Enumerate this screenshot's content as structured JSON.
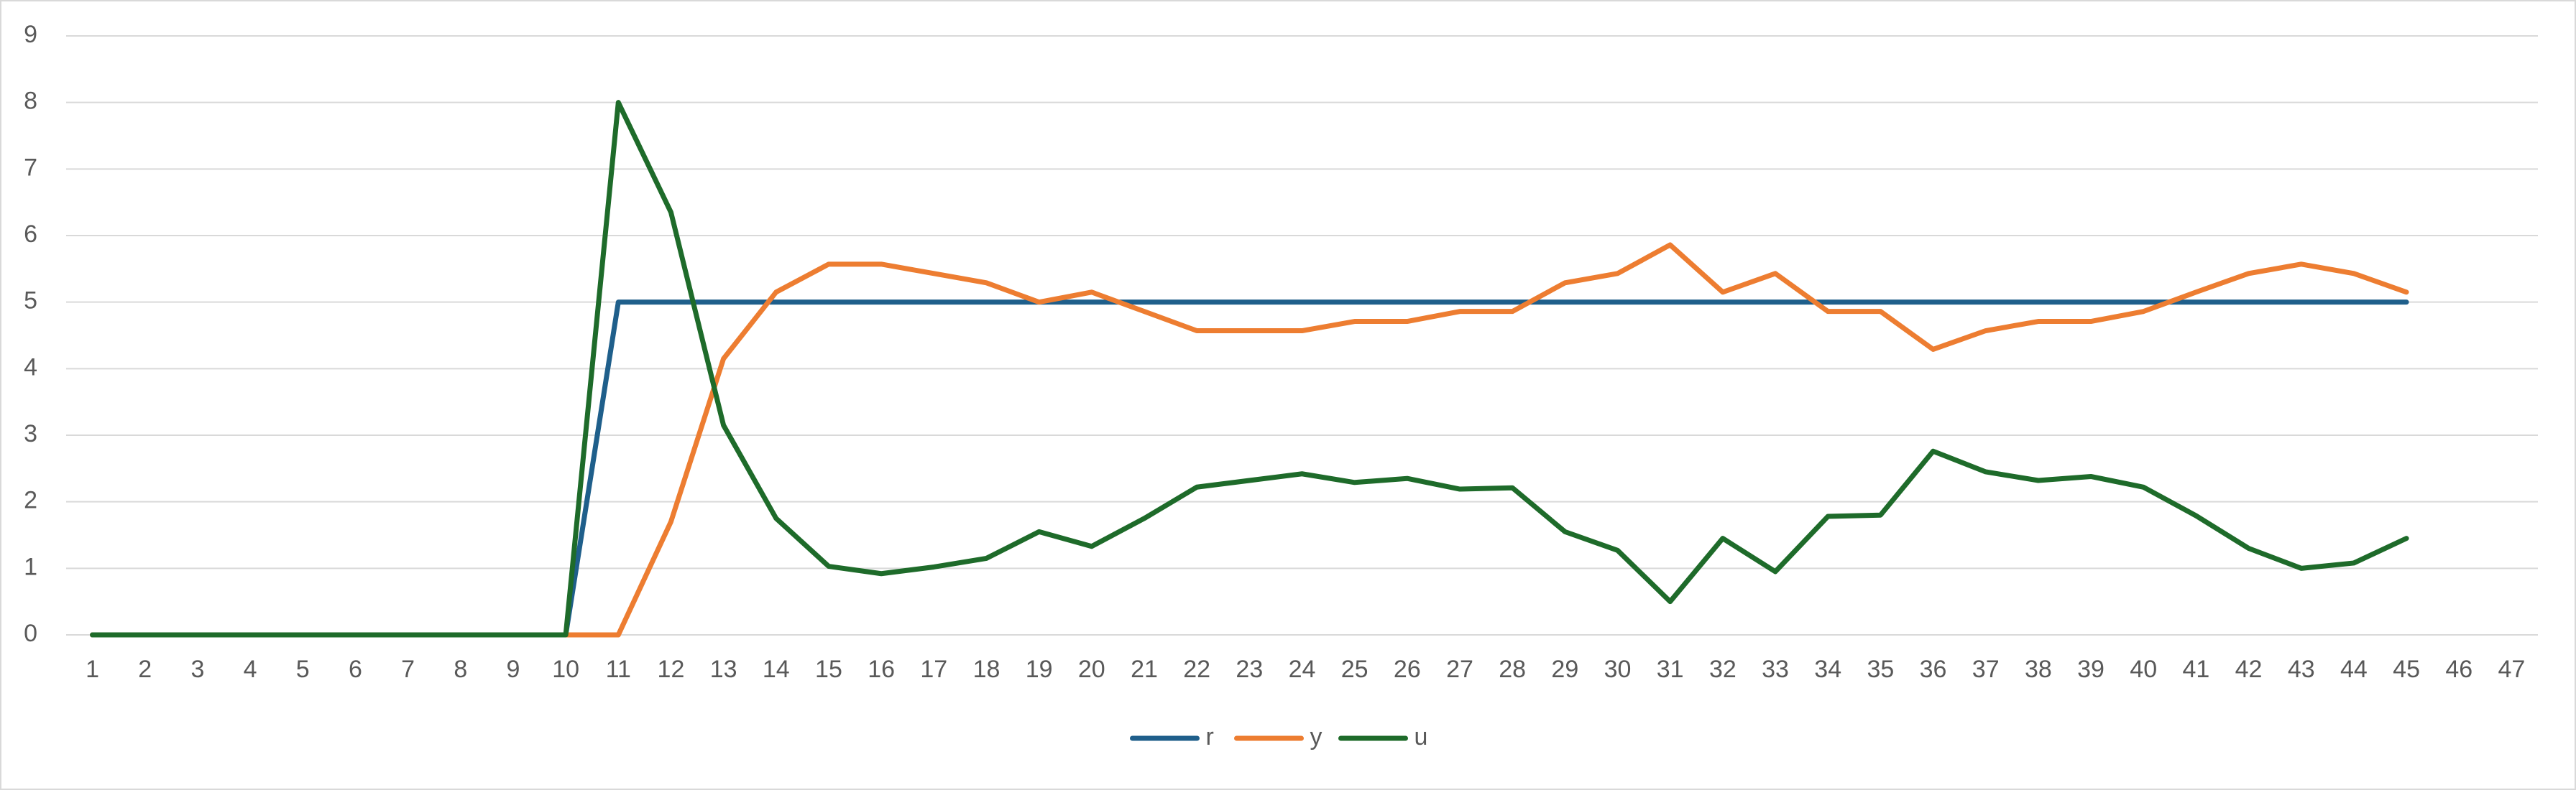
{
  "chart_data": {
    "type": "line",
    "categories": [
      "1",
      "2",
      "3",
      "4",
      "5",
      "6",
      "7",
      "8",
      "9",
      "10",
      "11",
      "12",
      "13",
      "14",
      "15",
      "16",
      "17",
      "18",
      "19",
      "20",
      "21",
      "22",
      "23",
      "24",
      "25",
      "26",
      "27",
      "28",
      "29",
      "30",
      "31",
      "32",
      "33",
      "34",
      "35",
      "36",
      "37",
      "38",
      "39",
      "40",
      "41",
      "42",
      "43",
      "44",
      "45",
      "46",
      "47"
    ],
    "series": [
      {
        "name": "r",
        "color": "#1f5f8b",
        "values": [
          0,
          0,
          0,
          0,
          0,
          0,
          0,
          0,
          0,
          0,
          5,
          5,
          5,
          5,
          5,
          5,
          5,
          5,
          5,
          5,
          5,
          5,
          5,
          5,
          5,
          5,
          5,
          5,
          5,
          5,
          5,
          5,
          5,
          5,
          5,
          5,
          5,
          5,
          5,
          5,
          5,
          5,
          5,
          5,
          5,
          null,
          null
        ]
      },
      {
        "name": "y",
        "color": "#ed7d31",
        "values": [
          0,
          0,
          0,
          0,
          0,
          0,
          0,
          0,
          0,
          0,
          0,
          1.7,
          4.15,
          5.15,
          5.57,
          5.57,
          5.43,
          5.29,
          5.0,
          5.15,
          4.86,
          4.57,
          4.57,
          4.57,
          4.71,
          4.71,
          4.86,
          4.86,
          5.29,
          5.43,
          5.86,
          5.15,
          5.43,
          4.86,
          4.86,
          4.29,
          4.57,
          4.71,
          4.71,
          4.86,
          5.15,
          5.43,
          5.57,
          5.43,
          5.15,
          null,
          null
        ]
      },
      {
        "name": "u",
        "color": "#1e6b2a",
        "values": [
          0,
          0,
          0,
          0,
          0,
          0,
          0,
          0,
          0,
          0,
          8.0,
          6.35,
          3.15,
          1.75,
          1.03,
          0.92,
          1.02,
          1.15,
          1.55,
          1.33,
          1.75,
          2.22,
          2.32,
          2.42,
          2.29,
          2.35,
          2.19,
          2.21,
          1.55,
          1.27,
          0.5,
          1.45,
          0.95,
          1.78,
          1.8,
          2.76,
          2.45,
          2.32,
          2.38,
          2.22,
          1.79,
          1.3,
          1.0,
          1.08,
          1.45,
          null,
          null
        ]
      }
    ],
    "ylim": [
      0,
      9
    ],
    "yticks": [
      0,
      1,
      2,
      3,
      4,
      5,
      6,
      7,
      8,
      9
    ],
    "grid": true,
    "legend": "bottom"
  }
}
